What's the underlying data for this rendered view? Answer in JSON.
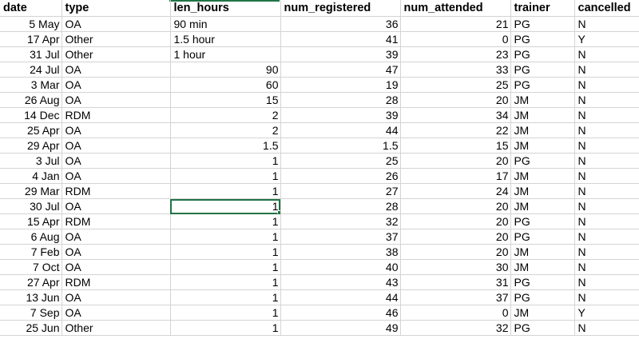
{
  "sheet": {
    "headers": [
      "date",
      "type",
      "len_hours",
      "num_registered",
      "num_attended",
      "trainer",
      "cancelled"
    ],
    "rows": [
      [
        "5 May",
        "OA",
        "90 min",
        "36",
        "21",
        "PG",
        "N"
      ],
      [
        "17 Apr",
        "Other",
        "1.5 hour",
        "41",
        "0",
        "PG",
        "Y"
      ],
      [
        "31 Jul",
        "Other",
        "1 hour",
        "39",
        "23",
        "PG",
        "N"
      ],
      [
        "24 Jul",
        "OA",
        "90",
        "47",
        "33",
        "PG",
        "N"
      ],
      [
        "3 Mar",
        "OA",
        "60",
        "19",
        "25",
        "PG",
        "N"
      ],
      [
        "26 Aug",
        "OA",
        "15",
        "28",
        "20",
        "JM",
        "N"
      ],
      [
        "14 Dec",
        "RDM",
        "2",
        "39",
        "34",
        "JM",
        "N"
      ],
      [
        "25 Apr",
        "OA",
        "2",
        "44",
        "22",
        "JM",
        "N"
      ],
      [
        "29 Apr",
        "OA",
        "1.5",
        "1.5",
        "15",
        "JM",
        "N"
      ],
      [
        "3 Jul",
        "OA",
        "1",
        "25",
        "20",
        "PG",
        "N"
      ],
      [
        "4 Jan",
        "OA",
        "1",
        "26",
        "17",
        "JM",
        "N"
      ],
      [
        "29 Mar",
        "RDM",
        "1",
        "27",
        "24",
        "JM",
        "N"
      ],
      [
        "30 Jul",
        "OA",
        "1",
        "28",
        "20",
        "JM",
        "N"
      ],
      [
        "15 Apr",
        "RDM",
        "1",
        "32",
        "20",
        "PG",
        "N"
      ],
      [
        "6 Aug",
        "OA",
        "1",
        "37",
        "20",
        "PG",
        "N"
      ],
      [
        "7 Feb",
        "OA",
        "1",
        "38",
        "20",
        "JM",
        "N"
      ],
      [
        "7 Oct",
        "OA",
        "1",
        "40",
        "30",
        "JM",
        "N"
      ],
      [
        "27 Apr",
        "RDM",
        "1",
        "43",
        "31",
        "PG",
        "N"
      ],
      [
        "13 Jun",
        "OA",
        "1",
        "44",
        "37",
        "PG",
        "N"
      ],
      [
        "7 Sep",
        "OA",
        "1",
        "46",
        "0",
        "JM",
        "Y"
      ],
      [
        "25 Jun",
        "Other",
        "1",
        "49",
        "32",
        "PG",
        "N"
      ]
    ],
    "selected_cell": {
      "row": 12,
      "col": 2
    },
    "accent_color": "#217346"
  }
}
